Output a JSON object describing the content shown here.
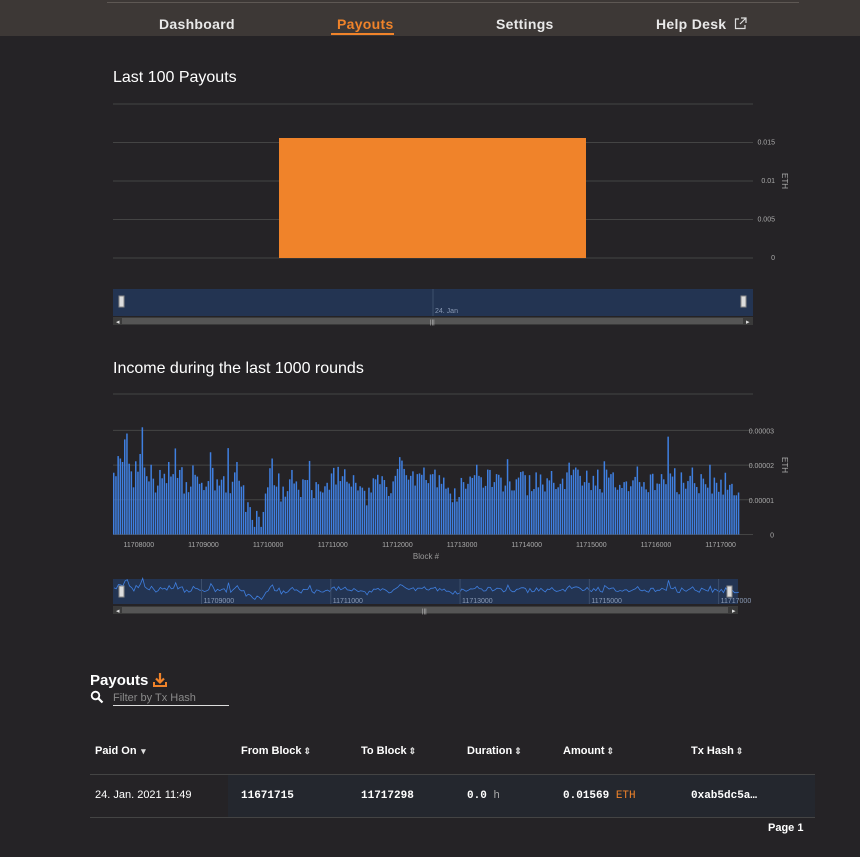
{
  "nav": {
    "dashboard": "Dashboard",
    "payouts": "Payouts",
    "settings": "Settings",
    "helpdesk": "Help Desk"
  },
  "chart1_title": "Last 100 Payouts",
  "chart2_title": "Income during the last 1000 rounds",
  "colors": {
    "accent": "#f0832a",
    "bar2": "#3f7fe0",
    "nav_bg": "#3d3836",
    "bg": "#252326"
  },
  "chart_data": [
    {
      "type": "bar",
      "title": "Last 100 Payouts",
      "categories": [
        "24. Jan"
      ],
      "values": [
        0.01569
      ],
      "ylabel": "ETH",
      "ylim": [
        0,
        0.015
      ],
      "yticks": [
        "0",
        "0.005",
        "0.01",
        "0.015"
      ],
      "navigator_label": "24. Jan",
      "grid": true
    },
    {
      "type": "bar",
      "title": "Income during the last 1000 rounds",
      "xlabel": "Block #",
      "ylabel": "ETH",
      "ylim": [
        0,
        3e-05
      ],
      "xlim": [
        11707600,
        11717300
      ],
      "yticks": [
        "0",
        "0.00001",
        "0.00002",
        "0.00003"
      ],
      "xticks": [
        "11708000",
        "11709000",
        "11710000",
        "11711000",
        "11712000",
        "11713000",
        "11714000",
        "11715000",
        "11716000",
        "11717000"
      ],
      "navigator_ticks": [
        "11709000",
        "11711000",
        "11713000",
        "11715000",
        "11717000"
      ],
      "values": [
        1.78e-05,
        1.68e-05,
        2.26e-05,
        2.19e-05,
        2.09e-05,
        2.74e-05,
        2.91e-05,
        2.04e-05,
        1.82e-05,
        1.36e-05,
        2.11e-05,
        1.81e-05,
        2.32e-05,
        3.09e-05,
        1.93e-05,
        1.68e-05,
        1.53e-05,
        2.01e-05,
        1.61e-05,
        1.21e-05,
        1.41e-05,
        1.86e-05,
        1.62e-05,
        1.75e-05,
        1.48e-05,
        2.09e-05,
        1.67e-05,
        1.74e-05,
        2.48e-05,
        1.63e-05,
        1.86e-05,
        1.94e-05,
        1.18e-05,
        1.51e-05,
        1.22e-05,
        1.38e-05,
        1.99e-05,
        1.72e-05,
        1.67e-05,
        1.46e-05,
        1.49e-05,
        1.28e-05,
        1.38e-05,
        1.54e-05,
        2.37e-05,
        1.92e-05,
        1.27e-05,
        1.59e-05,
        1.41e-05,
        1.58e-05,
        1.68e-05,
        1.21e-05,
        2.49e-05,
        1.19e-05,
        1.52e-05,
        1.79e-05,
        2.09e-05,
        1.55e-05,
        1.38e-05,
        1.42e-05,
        6.5e-06,
        9.3e-06,
        7.9e-06,
        4.2e-06,
        2.2e-06,
        6.8e-06,
        5.1e-06,
        2.2e-06,
        6.5e-06,
        1.18e-05,
        1.36e-05,
        1.91e-05,
        2.19e-05,
        1.42e-05,
        1.38e-05,
        1.76e-05,
        9.5e-06,
        1.38e-05,
        1.09e-05,
        1.25e-05,
        1.59e-05,
        1.86e-05,
        1.47e-05,
        1.53e-05,
        1.29e-05,
        1.08e-05,
        1.59e-05,
        1.57e-05,
        1.57e-05,
        2.12e-05,
        1.28e-05,
        1.05e-05,
        1.51e-05,
        1.45e-05,
        1.24e-05,
        1.21e-05,
        1.39e-05,
        1.49e-05,
        1.29e-05,
        1.76e-05,
        1.92e-05,
        1.44e-05,
        1.95e-05,
        1.54e-05,
        1.68e-05,
        1.88e-05,
        1.52e-05,
        1.47e-05,
        1.38e-05,
        1.71e-05,
        1.49e-05,
        1.27e-05,
        1.39e-05,
        1.35e-05,
        1.26e-05,
        8.4e-06,
        1.35e-05,
        1.21e-05,
        1.62e-05,
        1.59e-05,
        1.72e-05,
        1.45e-05,
        1.68e-05,
        1.57e-05,
        1.37e-05,
        1.11e-05,
        1.19e-05,
        1.53e-05,
        1.69e-05,
        1.89e-05,
        2.23e-05,
        2.13e-05,
        1.89e-05,
        1.71e-05,
        1.58e-05,
        1.69e-05,
        1.82e-05,
        1.41e-05,
        1.74e-05,
        1.76e-05,
        1.72e-05,
        1.93e-05,
        1.57e-05,
        1.48e-05,
        1.73e-05,
        1.74e-05,
        1.87e-05,
        1.36e-05,
        1.71e-05,
        1.46e-05,
        1.64e-05,
        1.32e-05,
        1.35e-05,
        1.18e-05,
        9.3e-06,
        1.33e-05,
        9.5e-06,
        1.08e-05,
        1.63e-05,
        1.51e-05,
        1.32e-05,
        1.46e-05,
        1.67e-05,
        1.63e-05,
        1.71e-05,
        2.01e-05,
        1.69e-05,
        1.65e-05,
        1.35e-05,
        1.4e-05,
        1.87e-05,
        1.86e-05,
        1.37e-05,
        1.51e-05,
        1.74e-05,
        1.72e-05,
        1.64e-05,
        1.24e-05,
        1.41e-05,
        2.17e-05,
        1.53e-05,
        1.27e-05,
        1.27e-05,
        1.59e-05,
        1.64e-05,
        1.8e-05,
        1.82e-05,
        1.71e-05,
        1.13e-05,
        1.71e-05,
        1.25e-05,
        1.31e-05,
        1.79e-05,
        1.36e-05,
        1.73e-05,
        1.44e-05,
        1.24e-05,
        1.62e-05,
        1.56e-05,
        1.83e-05,
        1.49e-05,
        1.31e-05,
        1.36e-05,
        1.46e-05,
        1.61e-05,
        1.31e-05,
        1.79e-05,
        2.07e-05,
        1.71e-05,
        1.87e-05,
        1.93e-05,
        1.87e-05,
        1.69e-05,
        1.41e-05,
        1.51e-05,
        1.84e-05,
        1.49e-05,
        1.28e-05,
        1.69e-05,
        1.41e-05,
        1.87e-05,
        1.31e-05,
        1.21e-05,
        2.11e-05,
        1.87e-05,
        1.64e-05,
        1.74e-05,
        1.79e-05,
        1.36e-05,
        1.29e-05,
        1.43e-05,
        1.34e-05,
        1.51e-05,
        1.53e-05,
        1.25e-05,
        1.39e-05,
        1.56e-05,
        1.66e-05,
        1.96e-05,
        1.51e-05,
        1.38e-05,
        1.51e-05,
        1.3e-05,
        1.22e-05,
        1.73e-05,
        1.75e-05,
        1.28e-05,
        1.47e-05,
        1.46e-05,
        1.74e-05,
        1.59e-05,
        1.45e-05,
        2.82e-05,
        1.76e-05,
        1.67e-05,
        1.91e-05,
        1.22e-05,
        1.16e-05,
        1.79e-05,
        1.49e-05,
        1.32e-05,
        1.54e-05,
        1.69e-05,
        1.93e-05,
        1.48e-05,
        1.37e-05,
        1.19e-05,
        1.74e-05,
        1.61e-05,
        1.45e-05,
        1.35e-05,
        2.01e-05,
        1.18e-05,
        1.64e-05,
        1.49e-05,
        1.23e-05,
        1.58e-05,
        1.15e-05,
        1.78e-05,
        1.29e-05,
        1.43e-05,
        1.46e-05,
        1.13e-05,
        1.13e-05,
        1.21e-05
      ]
    }
  ],
  "payouts": {
    "title": "Payouts",
    "search_placeholder": "Filter by Tx Hash",
    "columns": [
      "Paid On",
      "From Block",
      "To Block",
      "Duration",
      "Amount",
      "Tx Hash"
    ],
    "rows": [
      {
        "paid_on": "24. Jan. 2021 11:49",
        "from_block": "11671715",
        "to_block": "11717298",
        "duration": "0.0",
        "duration_unit": "h",
        "amount": "0.01569",
        "amount_unit": "ETH",
        "tx_hash": "0xab5dc5a…"
      }
    ],
    "pager": "Page 1"
  }
}
